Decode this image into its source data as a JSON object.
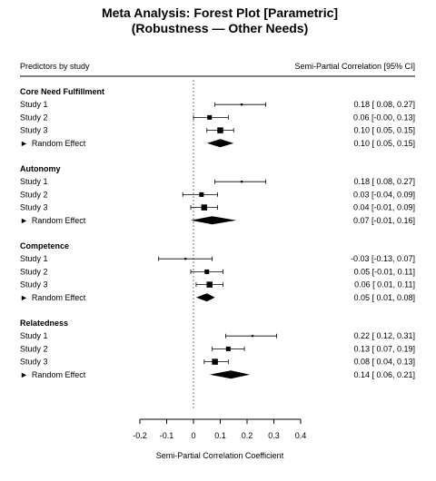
{
  "chart_data": {
    "type": "forest",
    "title_lines": [
      "Meta Analysis: Forest Plot [Parametric]",
      "(Robustness — Other Needs)"
    ],
    "left_header": "Predictors by study",
    "right_header": "Semi-Partial Correlation [95% CI]",
    "xlabel": "Semi-Partial Correlation Coefficient",
    "xlim": [
      -0.2,
      0.4
    ],
    "xticks": [
      -0.2,
      -0.1,
      0,
      0.1,
      0.2,
      0.3,
      0.4
    ],
    "xtick_labels": [
      "-0.2",
      "-0.1",
      "0",
      "0.1",
      "0.2",
      "0.3",
      "0.4"
    ],
    "reference_line": 0,
    "summary_marker": "►",
    "groups": [
      {
        "name": "Core Need Fulfillment",
        "studies": [
          {
            "label": "Study 1",
            "est": 0.18,
            "lo": 0.08,
            "hi": 0.27,
            "weight": 0.15,
            "text": "0.18 [ 0.08, 0.27]"
          },
          {
            "label": "Study 2",
            "est": 0.06,
            "lo": 0.0,
            "hi": 0.13,
            "weight": 0.7,
            "text": "0.06 [-0.00, 0.13]"
          },
          {
            "label": "Study 3",
            "est": 0.1,
            "lo": 0.05,
            "hi": 0.15,
            "weight": 1.0,
            "text": "0.10 [ 0.05, 0.15]"
          }
        ],
        "summary": {
          "label": "Random Effect",
          "est": 0.1,
          "lo": 0.05,
          "hi": 0.15,
          "text": "0.10 [ 0.05, 0.15]"
        }
      },
      {
        "name": "Autonomy",
        "studies": [
          {
            "label": "Study 1",
            "est": 0.18,
            "lo": 0.08,
            "hi": 0.27,
            "weight": 0.15,
            "text": "0.18 [ 0.08, 0.27]"
          },
          {
            "label": "Study 2",
            "est": 0.03,
            "lo": -0.04,
            "hi": 0.09,
            "weight": 0.7,
            "text": "0.03 [-0.04, 0.09]"
          },
          {
            "label": "Study 3",
            "est": 0.04,
            "lo": -0.01,
            "hi": 0.09,
            "weight": 1.0,
            "text": "0.04 [-0.01, 0.09]"
          }
        ],
        "summary": {
          "label": "Random Effect",
          "est": 0.07,
          "lo": -0.01,
          "hi": 0.16,
          "text": "0.07 [-0.01, 0.16]"
        }
      },
      {
        "name": "Competence",
        "studies": [
          {
            "label": "Study 1",
            "est": -0.03,
            "lo": -0.13,
            "hi": 0.07,
            "weight": 0.15,
            "text": "-0.03 [-0.13, 0.07]"
          },
          {
            "label": "Study 2",
            "est": 0.05,
            "lo": -0.01,
            "hi": 0.11,
            "weight": 0.7,
            "text": "0.05 [-0.01, 0.11]"
          },
          {
            "label": "Study 3",
            "est": 0.06,
            "lo": 0.01,
            "hi": 0.11,
            "weight": 1.0,
            "text": "0.06 [ 0.01, 0.11]"
          }
        ],
        "summary": {
          "label": "Random Effect",
          "est": 0.05,
          "lo": 0.01,
          "hi": 0.08,
          "text": "0.05 [ 0.01, 0.08]"
        }
      },
      {
        "name": "Relatedness",
        "studies": [
          {
            "label": "Study 1",
            "est": 0.22,
            "lo": 0.12,
            "hi": 0.31,
            "weight": 0.15,
            "text": "0.22 [ 0.12, 0.31]"
          },
          {
            "label": "Study 2",
            "est": 0.13,
            "lo": 0.07,
            "hi": 0.19,
            "weight": 0.7,
            "text": "0.13 [ 0.07, 0.19]"
          },
          {
            "label": "Study 3",
            "est": 0.08,
            "lo": 0.04,
            "hi": 0.13,
            "weight": 1.0,
            "text": "0.08 [ 0.04, 0.13]"
          }
        ],
        "summary": {
          "label": "Random Effect",
          "est": 0.14,
          "lo": 0.06,
          "hi": 0.21,
          "text": "0.14 [ 0.06, 0.21]"
        }
      }
    ],
    "colors": {
      "ink": "#000000",
      "rule": "#000000",
      "refline": "#555555"
    }
  }
}
